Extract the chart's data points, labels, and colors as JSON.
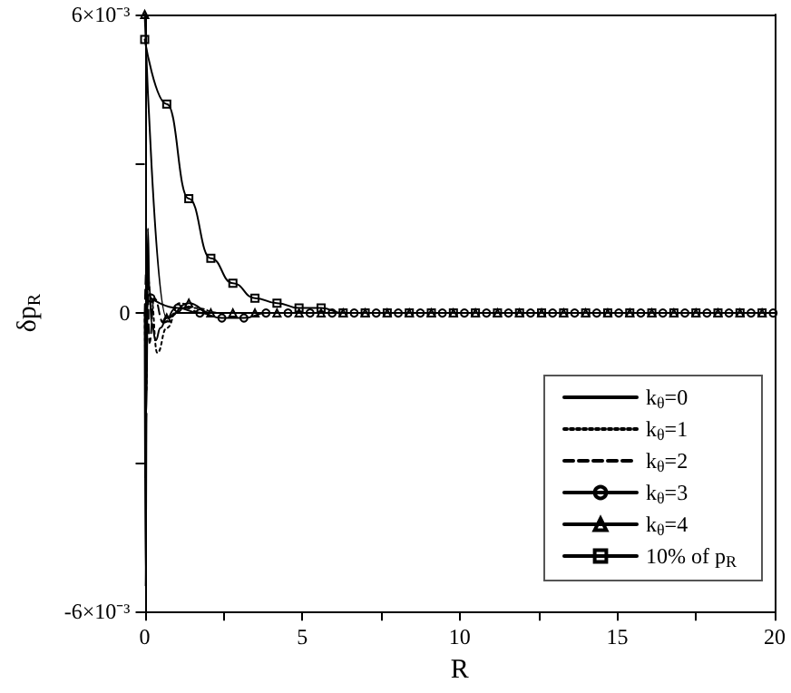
{
  "chart_data": {
    "type": "line",
    "xlabel": "R",
    "ylabel": "δp$_{R}$",
    "xlim": [
      0,
      20
    ],
    "xticks": [
      0,
      {
        "value": 2.5,
        "label": null
      },
      5,
      {
        "value": 7.5,
        "label": null
      },
      10,
      {
        "value": 12.5,
        "label": null
      },
      15,
      {
        "value": 17.5,
        "label": null
      },
      20
    ],
    "ylim": [
      -0.006,
      0.006
    ],
    "yticks": [
      {
        "value": -0.006,
        "label": "-6×10⁻³"
      },
      {
        "value": -0.003,
        "label": null
      },
      0,
      {
        "value": 0.003,
        "label": null
      },
      {
        "value": 0.006,
        "label": "6×10⁻³"
      }
    ],
    "grid": false,
    "legend": "bottom right",
    "series": [
      {
        "name": "k$_{θ}$=0",
        "color": "#000000",
        "marker": "none",
        "line_style": "solid",
        "x": [
          0,
          0.03,
          0.06,
          0.1,
          0.15,
          0.22,
          0.35,
          0.5,
          0.7,
          1,
          1.5,
          20
        ],
        "values": [
          0,
          -0.0055,
          -0.002,
          0.0017,
          0.0005,
          -0.0002,
          -0.00055,
          -0.0003,
          -0.0001,
          0,
          0,
          0
        ]
      },
      {
        "name": "k$_{θ}$=1",
        "color": "#000000",
        "marker": "none",
        "line_style": "dotted",
        "x": [
          0,
          0.05,
          0.1,
          0.2,
          0.4,
          0.7,
          1.1,
          1.6,
          2.4,
          20
        ],
        "values": [
          0,
          -0.0016,
          0.0007,
          0.0003,
          -0.0008,
          -0.0003,
          0.0002,
          0.0001,
          0,
          0
        ]
      },
      {
        "name": "k$_{θ}$=2",
        "color": "#000000",
        "marker": "none",
        "line_style": "dashed",
        "x": [
          0,
          0.08,
          0.15,
          0.3,
          0.6,
          1,
          1.3,
          1.8,
          20
        ],
        "values": [
          0,
          0.0012,
          -0.0006,
          0.0003,
          -0.0002,
          0.0001,
          0.0001,
          0,
          0
        ]
      },
      {
        "name": "k$_{θ}$=3",
        "color": "#000000",
        "marker": "circle",
        "line_style": "solid",
        "x": [
          0.2,
          1.05,
          1.75,
          2.45,
          3.15,
          3.85,
          4.55,
          5.25,
          5.95,
          6.65,
          7.35,
          8.05,
          8.75,
          9.45,
          10.15,
          10.85,
          11.55,
          12.25,
          12.95,
          13.65,
          14.35,
          15.05,
          15.75,
          16.45,
          17.15,
          17.85,
          18.55,
          19.25,
          19.95
        ],
        "values": [
          0.0003,
          0.0001,
          0,
          -0.0001,
          -0.0001,
          0,
          0,
          0,
          0,
          0,
          0,
          0,
          0,
          0,
          0,
          0,
          0,
          0,
          0,
          0,
          0,
          0,
          0,
          0,
          0,
          0,
          0,
          0,
          0
        ]
      },
      {
        "name": "k$_{θ}$=4",
        "color": "#000000",
        "marker": "triangle",
        "line_style": "solid",
        "x": [
          0,
          0.7,
          1.4,
          2.1,
          2.8,
          3.5,
          4.2,
          4.9,
          5.6,
          6.3,
          7,
          7.7,
          8.4,
          9.1,
          9.8,
          10.5,
          11.2,
          11.9,
          12.6,
          13.3,
          14,
          14.7,
          15.4,
          16.1,
          16.8,
          17.5,
          18.2,
          18.9,
          19.6
        ],
        "values": [
          0.006,
          -0.0001,
          0.0002,
          0,
          0,
          0,
          0,
          0,
          0,
          0,
          0,
          0,
          0,
          0,
          0,
          0,
          0,
          0,
          0,
          0,
          0,
          0,
          0,
          0,
          0,
          0,
          0,
          0,
          0
        ]
      },
      {
        "name": "10% of p$_{R}$",
        "color": "#000000",
        "marker": "square",
        "line_style": "solid",
        "x": [
          0,
          0.7,
          1.4,
          2.1,
          2.8,
          3.5,
          4.2,
          4.9,
          5.6,
          6.3,
          7,
          7.7,
          8.4,
          9.1,
          9.8,
          10.5,
          11.2,
          11.9,
          12.6,
          13.3,
          14,
          14.7,
          15.4,
          16.1,
          16.8,
          17.5,
          18.2,
          18.9,
          19.6
        ],
        "values": [
          0.0055,
          0.0042,
          0.0023,
          0.0011,
          0.0006,
          0.0003,
          0.0002,
          0.0001,
          0.0001,
          0,
          0,
          0,
          0,
          0,
          0,
          0,
          0,
          0,
          0,
          0,
          0,
          0,
          0,
          0,
          0,
          0,
          0,
          0,
          0
        ]
      }
    ]
  }
}
